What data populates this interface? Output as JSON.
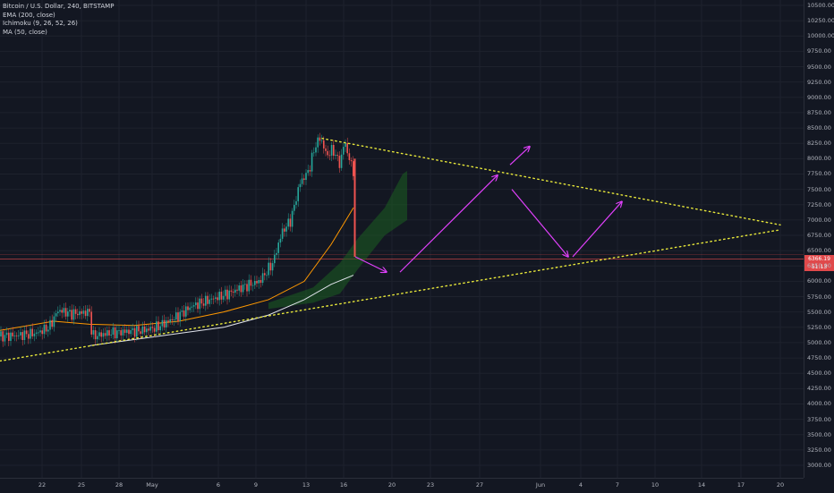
{
  "legend": {
    "title": "Bitcoin / U.S. Dollar, 240, BITSTAMP",
    "indicators": [
      "EMA (200, close)",
      "Ichimoku (9, 26, 52, 26)",
      "MA (50, close)"
    ]
  },
  "colors": {
    "background": "#131722",
    "grid": "#1e222d",
    "candle_up": "#26a69a",
    "candle_down": "#ef5350",
    "ema": "#ff9800",
    "ma": "#e0e3eb",
    "cloud": "#1b5e20",
    "trendline": "#e8e83a",
    "arrows": "#e040fb",
    "price_line": "#e0494b"
  },
  "price_badges": [
    "6366.19",
    "51:13"
  ],
  "chart_data": {
    "type": "candlestick",
    "y_ticks": [
      "10500.00",
      "10250.00",
      "10000.00",
      "9750.00",
      "9500.00",
      "9250.00",
      "9000.00",
      "8750.00",
      "8500.00",
      "8250.00",
      "8000.00",
      "7750.00",
      "7500.00",
      "7250.00",
      "7000.00",
      "6750.00",
      "6500.00",
      "6250.00",
      "6000.00",
      "5750.00",
      "5500.00",
      "5250.00",
      "5000.00",
      "4750.00",
      "4500.00",
      "4250.00",
      "4000.00",
      "3750.00",
      "3500.00",
      "3250.00",
      "3000.00"
    ],
    "x_ticks": [
      "22",
      "25",
      "28",
      "May",
      "6",
      "9",
      "13",
      "16",
      "20",
      "23",
      "27",
      "Jun",
      "4",
      "7",
      "10",
      "14",
      "17",
      "20"
    ],
    "ylim": [
      2880,
      10620
    ],
    "current_price": 6366.19,
    "price_path": [
      [
        0,
        5100
      ],
      [
        20,
        5120
      ],
      [
        40,
        5150
      ],
      [
        55,
        5250
      ],
      [
        65,
        5530
      ],
      [
        80,
        5470
      ],
      [
        100,
        5500
      ],
      [
        103,
        5100
      ],
      [
        120,
        5150
      ],
      [
        140,
        5180
      ],
      [
        160,
        5200
      ],
      [
        175,
        5250
      ],
      [
        195,
        5400
      ],
      [
        215,
        5600
      ],
      [
        235,
        5700
      ],
      [
        255,
        5800
      ],
      [
        270,
        5900
      ],
      [
        290,
        6000
      ],
      [
        305,
        6300
      ],
      [
        315,
        6800
      ],
      [
        325,
        7000
      ],
      [
        335,
        7600
      ],
      [
        345,
        7800
      ],
      [
        352,
        8200
      ],
      [
        358,
        8350
      ],
      [
        365,
        8050
      ],
      [
        372,
        8150
      ],
      [
        380,
        7900
      ],
      [
        385,
        8300
      ],
      [
        390,
        8000
      ],
      [
        395,
        7800
      ],
      [
        397,
        6400
      ]
    ],
    "ema_path": [
      [
        0,
        5200
      ],
      [
        60,
        5350
      ],
      [
        100,
        5300
      ],
      [
        150,
        5280
      ],
      [
        200,
        5350
      ],
      [
        250,
        5500
      ],
      [
        300,
        5700
      ],
      [
        340,
        6000
      ],
      [
        370,
        6600
      ],
      [
        395,
        7200
      ]
    ],
    "ma_path": [
      [
        100,
        4950
      ],
      [
        150,
        5050
      ],
      [
        200,
        5150
      ],
      [
        250,
        5250
      ],
      [
        300,
        5450
      ],
      [
        340,
        5700
      ],
      [
        370,
        5950
      ],
      [
        395,
        6100
      ]
    ],
    "cloud_upper": [
      [
        300,
        5650
      ],
      [
        350,
        5900
      ],
      [
        380,
        6300
      ],
      [
        400,
        6700
      ],
      [
        430,
        7200
      ],
      [
        450,
        7750
      ],
      [
        455,
        7800
      ]
    ],
    "cloud_lower": [
      [
        300,
        5550
      ],
      [
        350,
        5650
      ],
      [
        380,
        5800
      ],
      [
        400,
        6200
      ],
      [
        430,
        6750
      ],
      [
        450,
        6950
      ],
      [
        455,
        7000
      ]
    ],
    "trendlines": [
      {
        "from": [
          0,
          4700
        ],
        "to": [
          872,
          6840
        ]
      },
      {
        "from": [
          360,
          8330
        ],
        "to": [
          872,
          6920
        ]
      }
    ],
    "arrows": [
      {
        "from": [
          397,
          6400
        ],
        "to": [
          432,
          6150
        ]
      },
      {
        "from": [
          447,
          6150
        ],
        "to": [
          556,
          7730
        ]
      },
      {
        "from": [
          572,
          7500
        ],
        "to": [
          635,
          6400
        ]
      },
      {
        "from": [
          640,
          6400
        ],
        "to": [
          695,
          7300
        ]
      },
      {
        "from": [
          570,
          7900
        ],
        "to": [
          592,
          8200
        ]
      }
    ]
  }
}
